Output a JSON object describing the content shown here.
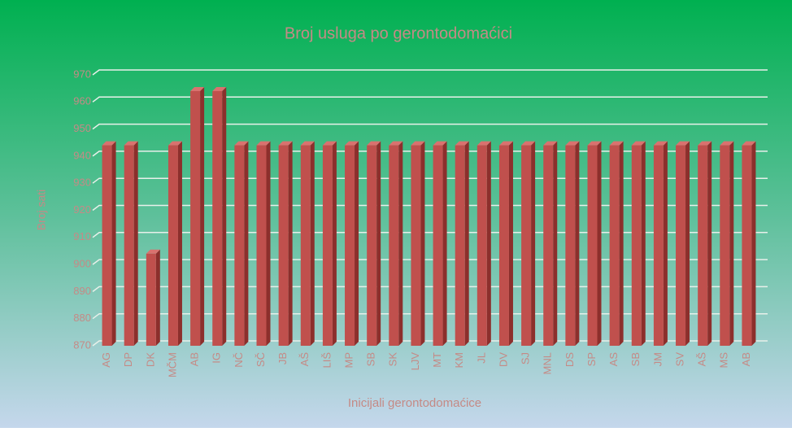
{
  "chart_data": {
    "type": "bar3d",
    "title": "Broj usluga po gerontodomaćici",
    "y_label": "Broj sati",
    "x_label": "Inicijali gerontodomaćice",
    "categories": [
      "AG",
      "DP",
      "DK",
      "MČM",
      "AB",
      "IG",
      "NČ",
      "SČ",
      "JB",
      "AŠ",
      "LIŠ",
      "MP",
      "SB",
      "SK",
      "LJV",
      "MT",
      "KM",
      "JL",
      "DV",
      "SJ",
      "MNL",
      "DS",
      "SP",
      "AS",
      "SB",
      "JM",
      "SV",
      "AŠ",
      "MS",
      "AB"
    ],
    "values": [
      944,
      944,
      904,
      944,
      964,
      964,
      944,
      944,
      944,
      944,
      944,
      944,
      944,
      944,
      944,
      944,
      944,
      944,
      944,
      944,
      944,
      944,
      944,
      944,
      944,
      944,
      944,
      944,
      944,
      944
    ],
    "color": "#c0504d",
    "ylim": [
      870,
      970
    ],
    "yticks": [
      870,
      880,
      890,
      900,
      910,
      920,
      930,
      940,
      950,
      960,
      970
    ],
    "grid": true
  }
}
